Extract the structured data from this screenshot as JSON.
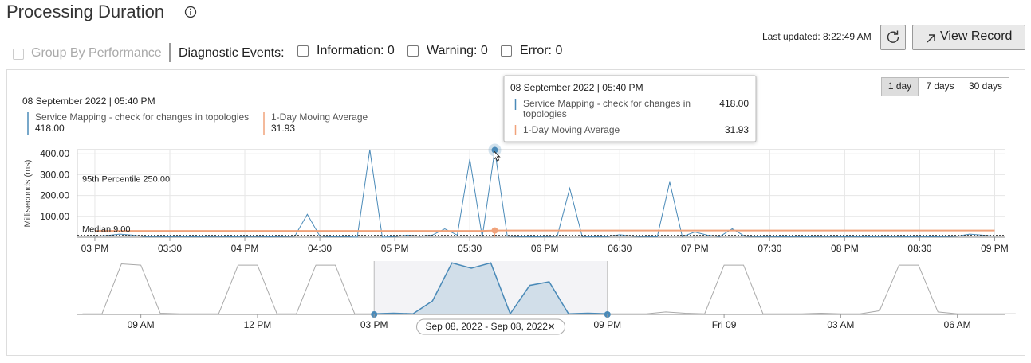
{
  "header": {
    "title": "Processing Duration",
    "group_by": "Group By Performance",
    "diagnostic_label": "Diagnostic Events:",
    "filters": [
      "Information: 0",
      "Warning: 0",
      "Error: 0"
    ],
    "last_updated": "Last updated: 8:22:49 AM",
    "view_record": "View Record"
  },
  "range_buttons": [
    "1 day",
    "7 days",
    "30 days"
  ],
  "chart_data": [
    {
      "type": "line",
      "ylabel": "Milliseconds (ms)",
      "x": [
        "2022-09-08 15:00",
        "2022-09-08 15:05",
        "2022-09-08 15:10",
        "2022-09-08 15:15",
        "2022-09-08 15:20",
        "2022-09-08 15:25",
        "2022-09-08 15:30",
        "2022-09-08 15:35",
        "2022-09-08 15:40",
        "2022-09-08 15:45",
        "2022-09-08 15:50",
        "2022-09-08 15:55",
        "2022-09-08 16:00",
        "2022-09-08 16:05",
        "2022-09-08 16:10",
        "2022-09-08 16:15",
        "2022-09-08 16:20",
        "2022-09-08 16:25",
        "2022-09-08 16:30",
        "2022-09-08 16:35",
        "2022-09-08 16:40",
        "2022-09-08 16:45",
        "2022-09-08 16:50",
        "2022-09-08 16:55",
        "2022-09-08 17:00",
        "2022-09-08 17:05",
        "2022-09-08 17:10",
        "2022-09-08 17:15",
        "2022-09-08 17:20",
        "2022-09-08 17:25",
        "2022-09-08 17:30",
        "2022-09-08 17:35",
        "2022-09-08 17:40",
        "2022-09-08 17:45",
        "2022-09-08 17:50",
        "2022-09-08 17:55",
        "2022-09-08 18:00",
        "2022-09-08 18:05",
        "2022-09-08 18:10",
        "2022-09-08 18:15",
        "2022-09-08 18:20",
        "2022-09-08 18:25",
        "2022-09-08 18:30",
        "2022-09-08 18:35",
        "2022-09-08 18:40",
        "2022-09-08 18:45",
        "2022-09-08 18:50",
        "2022-09-08 18:55",
        "2022-09-08 19:00",
        "2022-09-08 19:05",
        "2022-09-08 19:10",
        "2022-09-08 19:15",
        "2022-09-08 19:20",
        "2022-09-08 19:25",
        "2022-09-08 19:30",
        "2022-09-08 19:35",
        "2022-09-08 19:40",
        "2022-09-08 19:45",
        "2022-09-08 19:50",
        "2022-09-08 19:55",
        "2022-09-08 20:00",
        "2022-09-08 20:05",
        "2022-09-08 20:10",
        "2022-09-08 20:15",
        "2022-09-08 20:20",
        "2022-09-08 20:25",
        "2022-09-08 20:30",
        "2022-09-08 20:35",
        "2022-09-08 20:40",
        "2022-09-08 20:45",
        "2022-09-08 20:50",
        "2022-09-08 20:55",
        "2022-09-08 21:00"
      ],
      "series": [
        {
          "name": "Service Mapping - check for changes in topologies",
          "color": "#4a8ab8",
          "values": [
            5,
            8,
            15,
            10,
            3,
            3,
            2,
            3,
            2,
            3,
            3,
            2,
            3,
            3,
            2,
            3,
            5,
            110,
            5,
            2,
            3,
            0,
            420,
            0,
            3,
            10,
            5,
            10,
            40,
            10,
            375,
            0,
            418,
            5,
            3,
            2,
            3,
            5,
            235,
            3,
            2,
            3,
            12,
            5,
            3,
            2,
            265,
            3,
            25,
            10,
            3,
            40,
            5,
            3,
            3,
            2,
            3,
            2,
            3,
            3,
            2,
            3,
            2,
            3,
            3,
            2,
            3,
            2,
            3,
            5,
            15,
            10,
            5
          ]
        },
        {
          "name": "1-Day Moving Average",
          "color": "#f0a27a",
          "values": [
            30,
            30,
            30,
            30,
            30,
            30,
            30,
            30,
            30,
            30,
            30,
            30,
            30,
            30,
            30,
            30,
            30,
            30,
            30,
            30,
            30,
            30,
            30,
            30,
            30,
            30,
            30,
            30,
            30,
            30,
            30,
            30,
            31.93,
            32,
            32,
            32,
            32,
            32,
            32,
            32,
            32,
            32,
            32,
            32,
            32,
            32,
            32,
            32,
            32,
            32,
            32,
            32,
            32,
            32,
            32,
            32,
            32,
            32,
            32,
            32,
            32,
            32,
            32,
            32,
            32,
            32,
            32,
            32,
            32,
            32,
            32,
            32,
            32
          ]
        }
      ],
      "hover": {
        "label": "08 September 2022 | 05:40 PM",
        "values": [
          {
            "value": 418,
            "label": "418.00"
          },
          {
            "value": 31.93,
            "label": "31.93"
          }
        ]
      },
      "annotations": [
        {
          "label": "95th Percentile 250.00",
          "value": 250
        },
        {
          "label": "Median 9.00",
          "value": 9
        }
      ],
      "xlim": [
        "2022-09-08 14:53",
        "2022-09-08 21:04"
      ],
      "xticks": [
        {
          "value": "2022-09-08 15:00",
          "label": "03 PM"
        },
        {
          "value": "2022-09-08 15:30",
          "label": "03:30"
        },
        {
          "value": "2022-09-08 16:00",
          "label": "04 PM"
        },
        {
          "value": "2022-09-08 16:30",
          "label": "04:30"
        },
        {
          "value": "2022-09-08 17:00",
          "label": "05 PM"
        },
        {
          "value": "2022-09-08 17:30",
          "label": "05:30"
        },
        {
          "value": "2022-09-08 18:00",
          "label": "06 PM"
        },
        {
          "value": "2022-09-08 18:30",
          "label": "06:30"
        },
        {
          "value": "2022-09-08 19:00",
          "label": "07 PM"
        },
        {
          "value": "2022-09-08 19:30",
          "label": "07:30"
        },
        {
          "value": "2022-09-08 20:00",
          "label": "08 PM"
        },
        {
          "value": "2022-09-08 20:30",
          "label": "08:30"
        },
        {
          "value": "2022-09-08 21:00",
          "label": "09 PM"
        }
      ],
      "ylim": [
        0,
        420
      ],
      "yticks": [
        {
          "value": 100,
          "label": "100.00"
        },
        {
          "value": 200,
          "label": "200.00"
        },
        {
          "value": 300,
          "label": "300.00"
        },
        {
          "value": 400,
          "label": "400.00"
        }
      ],
      "grid": true
    },
    {
      "type": "line",
      "x": [
        "2022-09-08 07:30",
        "2022-09-08 08:00",
        "2022-09-08 08:30",
        "2022-09-08 09:00",
        "2022-09-08 09:30",
        "2022-09-08 10:00",
        "2022-09-08 10:30",
        "2022-09-08 11:00",
        "2022-09-08 11:30",
        "2022-09-08 12:00",
        "2022-09-08 12:30",
        "2022-09-08 13:00",
        "2022-09-08 13:30",
        "2022-09-08 14:00",
        "2022-09-08 14:30",
        "2022-09-08 15:00",
        "2022-09-08 15:30",
        "2022-09-08 16:00",
        "2022-09-08 16:30",
        "2022-09-08 17:00",
        "2022-09-08 17:30",
        "2022-09-08 18:00",
        "2022-09-08 18:30",
        "2022-09-08 19:00",
        "2022-09-08 19:30",
        "2022-09-08 20:00",
        "2022-09-08 20:30",
        "2022-09-08 21:00",
        "2022-09-08 21:30",
        "2022-09-08 22:00",
        "2022-09-08 22:30",
        "2022-09-08 23:00",
        "2022-09-08 23:30",
        "2022-09-09 00:00",
        "2022-09-09 00:30",
        "2022-09-09 01:00",
        "2022-09-09 01:30",
        "2022-09-09 02:00",
        "2022-09-09 02:30",
        "2022-09-09 03:00",
        "2022-09-09 03:30",
        "2022-09-09 04:00",
        "2022-09-09 04:30",
        "2022-09-09 05:00",
        "2022-09-09 05:30",
        "2022-09-09 06:00",
        "2022-09-09 06:30",
        "2022-09-09 07:00",
        "2022-09-09 07:30"
      ],
      "series": [
        {
          "color": "#a9a9a9",
          "values": [
            5,
            5,
            410,
            400,
            10,
            5,
            5,
            5,
            400,
            400,
            5,
            5,
            400,
            400,
            5,
            5,
            10,
            5,
            110,
            418,
            375,
            418,
            5,
            235,
            265,
            5,
            10,
            5,
            5,
            5,
            20,
            10,
            5,
            400,
            400,
            5,
            5,
            5,
            10,
            5,
            5,
            30,
            400,
            400,
            20,
            5,
            5,
            5,
            5
          ]
        }
      ],
      "selection": {
        "range": [
          "2022-09-08 15:00",
          "2022-09-08 21:00"
        ],
        "label": "Sep 08, 2022 - Sep 08, 2022",
        "color": "#4a8ab8"
      },
      "xlim": [
        "2022-09-08 07:22",
        "2022-09-09 07:13"
      ],
      "xticks": [
        {
          "value": "2022-09-08 09:00",
          "label": "09 AM"
        },
        {
          "value": "2022-09-08 12:00",
          "label": "12 PM"
        },
        {
          "value": "2022-09-08 15:00",
          "label": "03 PM"
        },
        {
          "value": "2022-09-08 21:00",
          "label": "09 PM"
        },
        {
          "value": "2022-09-09 00:00",
          "label": "Fri 09"
        },
        {
          "value": "2022-09-09 03:00",
          "label": "03 AM"
        },
        {
          "value": "2022-09-09 06:00",
          "label": "06 AM"
        }
      ],
      "ylim": [
        0,
        420
      ]
    }
  ]
}
